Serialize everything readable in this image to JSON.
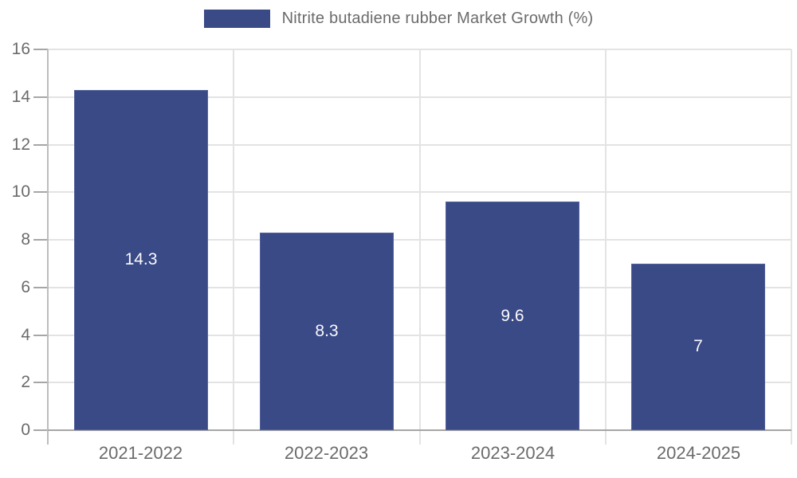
{
  "legend": {
    "label": "Nitrite butadiene rubber Market Growth (%)"
  },
  "chart_data": {
    "type": "bar",
    "title": "Nitrite butadiene rubber Market Growth (%)",
    "categories": [
      "2021-2022",
      "2022-2023",
      "2023-2024",
      "2024-2025"
    ],
    "values": [
      14.3,
      8.3,
      9.6,
      7
    ],
    "value_labels": [
      "14.3",
      "8.3",
      "9.6",
      "7"
    ],
    "xlabel": "",
    "ylabel": "",
    "ylim": [
      0,
      16
    ],
    "yticks": [
      0,
      2,
      4,
      6,
      8,
      10,
      12,
      14,
      16
    ],
    "grid": true,
    "legend_position": "top-center",
    "colors": {
      "bar": "#3a4a87",
      "bar_edge": "#53619a",
      "value_label": "#fafafa",
      "axis_text": "#6b6b6b",
      "gridline": "#e3e3e3",
      "baseline": "#a6a6a6",
      "y_axis_line": "#bdbdbd",
      "tick": "#a6a6a6",
      "background": "#ffffff"
    }
  }
}
